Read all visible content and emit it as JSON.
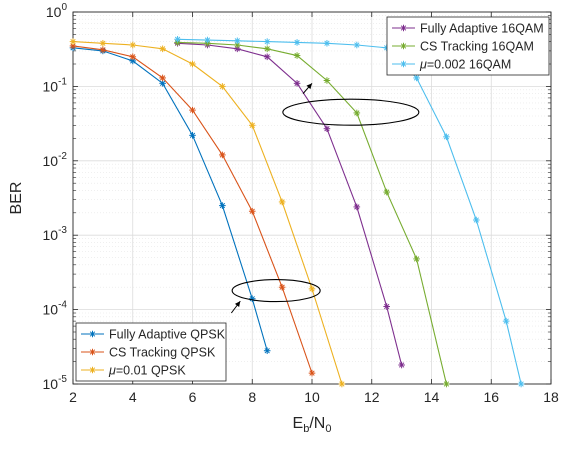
{
  "chart_data": {
    "type": "line",
    "xlabel": "E_b/N_0",
    "ylabel": "BER",
    "xlim": [
      2,
      18
    ],
    "ylim": [
      1e-05,
      1
    ],
    "yscale": "log",
    "xticks": [
      2,
      4,
      6,
      8,
      10,
      12,
      14,
      16,
      18
    ],
    "yticks": [
      {
        "value": 1,
        "mantissa": "10",
        "exponent": "0"
      },
      {
        "value": 0.1,
        "mantissa": "10",
        "exponent": "-1"
      },
      {
        "value": 0.01,
        "mantissa": "10",
        "exponent": "-2"
      },
      {
        "value": 0.001,
        "mantissa": "10",
        "exponent": "-3"
      },
      {
        "value": 0.0001,
        "mantissa": "10",
        "exponent": "-4"
      },
      {
        "value": 1e-05,
        "mantissa": "10",
        "exponent": "-5"
      }
    ],
    "grid": true,
    "minor_grid": true,
    "series": [
      {
        "name": "Fully Adaptive QPSK",
        "color": "#0072BD",
        "marker": "asterisk",
        "x": [
          2,
          3,
          4,
          5,
          6,
          7,
          8,
          8.5
        ],
        "y": [
          0.33,
          0.3,
          0.22,
          0.11,
          0.022,
          0.0025,
          0.00014,
          2.8e-05
        ]
      },
      {
        "name": "CS Tracking QPSK",
        "color": "#D95319",
        "marker": "asterisk",
        "x": [
          2,
          3,
          4,
          5,
          6,
          7,
          8,
          9,
          10
        ],
        "y": [
          0.35,
          0.31,
          0.25,
          0.13,
          0.048,
          0.012,
          0.0021,
          0.0002,
          1.4e-05
        ]
      },
      {
        "name": "μ=0.01 QPSK",
        "color": "#EDB120",
        "marker": "asterisk",
        "x": [
          2,
          3,
          4,
          5,
          6,
          7,
          8,
          9,
          10,
          11
        ],
        "y": [
          0.4,
          0.38,
          0.36,
          0.32,
          0.2,
          0.1,
          0.03,
          0.0028,
          0.00019,
          1e-05
        ]
      },
      {
        "name": "Fully Adaptive 16QAM",
        "color": "#7E2F8E",
        "marker": "asterisk",
        "x": [
          5.5,
          6.5,
          7.5,
          8.5,
          9.5,
          10.5,
          11.5,
          12.5,
          13
        ],
        "y": [
          0.38,
          0.36,
          0.32,
          0.25,
          0.11,
          0.027,
          0.0024,
          0.00011,
          1.8e-05
        ]
      },
      {
        "name": "CS Tracking 16QAM",
        "color": "#77AC30",
        "marker": "asterisk",
        "x": [
          5.5,
          6.5,
          7.5,
          8.5,
          9.5,
          10.5,
          11.5,
          12.5,
          13.5,
          14.5
        ],
        "y": [
          0.39,
          0.38,
          0.36,
          0.32,
          0.26,
          0.12,
          0.044,
          0.0038,
          0.00048,
          1e-05
        ]
      },
      {
        "name": "μ=0.002 16QAM",
        "color": "#4DBEEE",
        "marker": "asterisk",
        "x": [
          5.5,
          6.5,
          7.5,
          8.5,
          9.5,
          10.5,
          11.5,
          12.5,
          13.5,
          14.5,
          15.5,
          16.5,
          17
        ],
        "y": [
          0.43,
          0.42,
          0.41,
          0.4,
          0.39,
          0.38,
          0.36,
          0.33,
          0.13,
          0.021,
          0.0016,
          7e-05,
          1e-05
        ]
      }
    ],
    "legends": [
      {
        "placement": "top-right",
        "series": [
          "Fully Adaptive 16QAM",
          "CS Tracking 16QAM",
          "μ=0.002 16QAM"
        ]
      },
      {
        "placement": "bottom-left",
        "series": [
          "Fully Adaptive QPSK",
          "CS Tracking QPSK",
          "μ=0.01 QPSK"
        ]
      }
    ],
    "annotations": [
      {
        "type": "ellipse",
        "center": [
          11.3,
          0.045
        ],
        "target_group": "16QAM"
      },
      {
        "type": "ellipse",
        "center": [
          8.8,
          0.00018
        ],
        "target_group": "QPSK"
      }
    ]
  }
}
